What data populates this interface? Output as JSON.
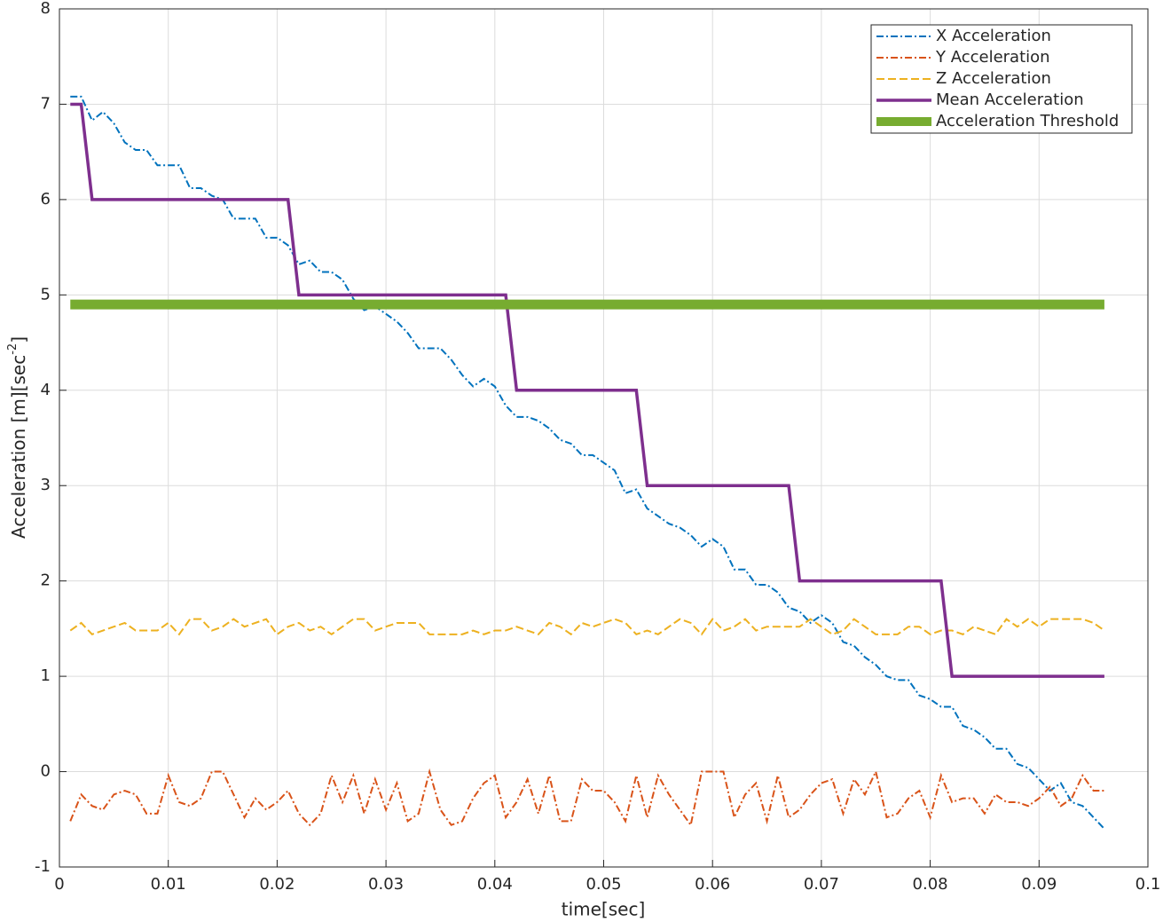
{
  "chart_data": {
    "type": "line",
    "xlabel": "time[sec]",
    "ylabel": {
      "text": "Acceleration [m][sec",
      "superscript": "-2",
      "suffix": "]"
    },
    "x": [
      0.001,
      0.002,
      0.003,
      0.004,
      0.005,
      0.006,
      0.007,
      0.008,
      0.009,
      0.01,
      0.011,
      0.012,
      0.013,
      0.014,
      0.015,
      0.016,
      0.017,
      0.018,
      0.019,
      0.02,
      0.021,
      0.022,
      0.023,
      0.024,
      0.025,
      0.026,
      0.027,
      0.028,
      0.029,
      0.03,
      0.031,
      0.032,
      0.033,
      0.034,
      0.035,
      0.036,
      0.037,
      0.038,
      0.039,
      0.04,
      0.041,
      0.042,
      0.043,
      0.044,
      0.045,
      0.046,
      0.047,
      0.048,
      0.049,
      0.05,
      0.051,
      0.052,
      0.053,
      0.054,
      0.055,
      0.056,
      0.057,
      0.058,
      0.059,
      0.06,
      0.061,
      0.062,
      0.063,
      0.064,
      0.065,
      0.066,
      0.067,
      0.068,
      0.069,
      0.07,
      0.071,
      0.072,
      0.073,
      0.074,
      0.075,
      0.076,
      0.077,
      0.078,
      0.079,
      0.08,
      0.081,
      0.082,
      0.083,
      0.084,
      0.085,
      0.086,
      0.087,
      0.088,
      0.089,
      0.09,
      0.091,
      0.092,
      0.093,
      0.094,
      0.095,
      0.096
    ],
    "series": [
      {
        "name": "X Acceleration",
        "color": "#0072bd",
        "line_style": "dashdot",
        "values": [
          7.08,
          7.08,
          6.83,
          6.92,
          6.8,
          6.6,
          6.52,
          6.52,
          6.36,
          6.36,
          6.36,
          6.12,
          6.12,
          6.04,
          6.0,
          5.8,
          5.8,
          5.8,
          5.6,
          5.6,
          5.52,
          5.32,
          5.36,
          5.24,
          5.24,
          5.16,
          4.96,
          4.84,
          4.88,
          4.8,
          4.72,
          4.6,
          4.44,
          4.44,
          4.44,
          4.32,
          4.16,
          4.04,
          4.12,
          4.04,
          3.84,
          3.72,
          3.72,
          3.68,
          3.6,
          3.48,
          3.44,
          3.32,
          3.32,
          3.24,
          3.16,
          2.92,
          2.96,
          2.76,
          2.68,
          2.6,
          2.56,
          2.48,
          2.36,
          2.44,
          2.36,
          2.12,
          2.12,
          1.96,
          1.96,
          1.88,
          1.72,
          1.68,
          1.56,
          1.64,
          1.56,
          1.36,
          1.32,
          1.2,
          1.12,
          1.0,
          0.96,
          0.96,
          0.8,
          0.76,
          0.68,
          0.68,
          0.48,
          0.44,
          0.36,
          0.24,
          0.24,
          0.08,
          0.04,
          -0.08,
          -0.2,
          -0.12,
          -0.32,
          -0.36,
          -0.48,
          -0.6
        ]
      },
      {
        "name": "Y Acceleration",
        "color": "#d95319",
        "line_style": "dashdot",
        "values": [
          -0.52,
          -0.24,
          -0.36,
          -0.4,
          -0.24,
          -0.2,
          -0.24,
          -0.44,
          -0.44,
          -0.04,
          -0.32,
          -0.36,
          -0.28,
          0,
          0,
          -0.24,
          -0.48,
          -0.28,
          -0.4,
          -0.32,
          -0.2,
          -0.44,
          -0.56,
          -0.44,
          -0.04,
          -0.32,
          -0.04,
          -0.44,
          -0.08,
          -0.4,
          -0.12,
          -0.52,
          -0.44,
          0,
          -0.4,
          -0.56,
          -0.52,
          -0.28,
          -0.12,
          -0.04,
          -0.48,
          -0.32,
          -0.08,
          -0.44,
          -0.04,
          -0.52,
          -0.52,
          -0.08,
          -0.2,
          -0.2,
          -0.32,
          -0.52,
          -0.04,
          -0.48,
          -0.04,
          -0.24,
          -0.4,
          -0.56,
          0,
          0,
          0,
          -0.48,
          -0.24,
          -0.12,
          -0.52,
          -0.04,
          -0.48,
          -0.4,
          -0.24,
          -0.12,
          -0.08,
          -0.44,
          -0.08,
          -0.24,
          0,
          -0.48,
          -0.44,
          -0.28,
          -0.2,
          -0.48,
          -0.04,
          -0.32,
          -0.28,
          -0.28,
          -0.44,
          -0.24,
          -0.32,
          -0.32,
          -0.36,
          -0.28,
          -0.16,
          -0.36,
          -0.28,
          -0.04,
          -0.2,
          -0.2
        ]
      },
      {
        "name": "Z Acceleration",
        "color": "#edb120",
        "line_style": "dashed",
        "values": [
          1.48,
          1.56,
          1.44,
          1.48,
          1.52,
          1.56,
          1.48,
          1.48,
          1.48,
          1.56,
          1.44,
          1.6,
          1.6,
          1.48,
          1.52,
          1.6,
          1.52,
          1.56,
          1.6,
          1.44,
          1.52,
          1.56,
          1.48,
          1.52,
          1.44,
          1.52,
          1.6,
          1.6,
          1.48,
          1.52,
          1.56,
          1.56,
          1.56,
          1.44,
          1.44,
          1.44,
          1.44,
          1.48,
          1.44,
          1.48,
          1.48,
          1.52,
          1.48,
          1.44,
          1.56,
          1.52,
          1.44,
          1.56,
          1.52,
          1.56,
          1.6,
          1.56,
          1.44,
          1.48,
          1.44,
          1.52,
          1.6,
          1.56,
          1.44,
          1.6,
          1.48,
          1.52,
          1.6,
          1.48,
          1.52,
          1.52,
          1.52,
          1.52,
          1.6,
          1.52,
          1.44,
          1.48,
          1.6,
          1.52,
          1.44,
          1.44,
          1.44,
          1.52,
          1.52,
          1.44,
          1.48,
          1.48,
          1.44,
          1.52,
          1.48,
          1.44,
          1.6,
          1.52,
          1.6,
          1.52,
          1.6,
          1.6,
          1.6,
          1.6,
          1.56,
          1.48
        ]
      },
      {
        "name": "Mean Acceleration",
        "color": "#7e2f8e",
        "line_style": "solid",
        "values": [
          7,
          7,
          6,
          6,
          6,
          6,
          6,
          6,
          6,
          6,
          6,
          6,
          6,
          6,
          6,
          6,
          6,
          6,
          6,
          6,
          6,
          5,
          5,
          5,
          5,
          5,
          5,
          5,
          5,
          5,
          5,
          5,
          5,
          5,
          5,
          5,
          5,
          5,
          5,
          5,
          5,
          4,
          4,
          4,
          4,
          4,
          4,
          4,
          4,
          4,
          4,
          4,
          4,
          3,
          3,
          3,
          3,
          3,
          3,
          3,
          3,
          3,
          3,
          3,
          3,
          3,
          3,
          2,
          2,
          2,
          2,
          2,
          2,
          2,
          2,
          2,
          2,
          2,
          2,
          2,
          2,
          1,
          1,
          1,
          1,
          1,
          1,
          1,
          1,
          1,
          1,
          1,
          1,
          1,
          1,
          1
        ]
      },
      {
        "name": "Acceleration Threshold",
        "color": "#77ac30",
        "line_style": "thick",
        "values": [
          4.9,
          4.9,
          4.9,
          4.9,
          4.9,
          4.9,
          4.9,
          4.9,
          4.9,
          4.9,
          4.9,
          4.9,
          4.9,
          4.9,
          4.9,
          4.9,
          4.9,
          4.9,
          4.9,
          4.9,
          4.9,
          4.9,
          4.9,
          4.9,
          4.9,
          4.9,
          4.9,
          4.9,
          4.9,
          4.9,
          4.9,
          4.9,
          4.9,
          4.9,
          4.9,
          4.9,
          4.9,
          4.9,
          4.9,
          4.9,
          4.9,
          4.9,
          4.9,
          4.9,
          4.9,
          4.9,
          4.9,
          4.9,
          4.9,
          4.9,
          4.9,
          4.9,
          4.9,
          4.9,
          4.9,
          4.9,
          4.9,
          4.9,
          4.9,
          4.9,
          4.9,
          4.9,
          4.9,
          4.9,
          4.9,
          4.9,
          4.9,
          4.9,
          4.9,
          4.9,
          4.9,
          4.9,
          4.9,
          4.9,
          4.9,
          4.9,
          4.9,
          4.9,
          4.9,
          4.9,
          4.9,
          4.9,
          4.9,
          4.9,
          4.9,
          4.9,
          4.9,
          4.9,
          4.9,
          4.9,
          4.9,
          4.9,
          4.9,
          4.9,
          4.9,
          4.9
        ]
      }
    ],
    "xlim": [
      0,
      0.1
    ],
    "xticks": [
      0,
      0.01,
      0.02,
      0.03,
      0.04,
      0.05,
      0.06,
      0.07,
      0.08,
      0.09,
      0.1
    ],
    "ylim": [
      -1,
      8
    ],
    "yticks": [
      -1,
      0,
      1,
      2,
      3,
      4,
      5,
      6,
      7,
      8
    ],
    "grid": true,
    "legend": "top-right"
  }
}
